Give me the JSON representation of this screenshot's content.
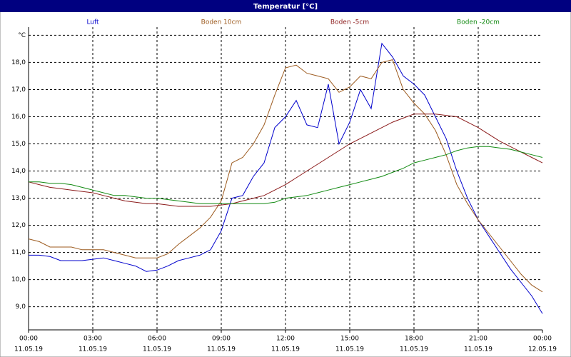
{
  "chart_data": {
    "type": "line",
    "title": "Temperatur [°C]",
    "x": [
      0,
      0.5,
      1,
      1.5,
      2,
      2.5,
      3,
      3.5,
      4,
      4.5,
      5,
      5.5,
      6,
      6.5,
      7,
      7.5,
      8,
      8.5,
      9,
      9.5,
      10,
      10.5,
      11,
      11.5,
      12,
      12.5,
      13,
      13.5,
      14,
      14.5,
      15,
      15.5,
      16,
      16.5,
      17,
      17.5,
      18,
      18.5,
      19,
      19.5,
      20,
      20.5,
      21,
      21.5,
      22,
      22.5,
      23,
      23.5,
      24
    ],
    "series": [
      {
        "name": "Luft",
        "color": "#0000cc",
        "values": [
          10.9,
          10.9,
          10.85,
          10.7,
          10.7,
          10.7,
          10.75,
          10.8,
          10.7,
          10.6,
          10.5,
          10.3,
          10.35,
          10.5,
          10.7,
          10.8,
          10.9,
          11.1,
          11.8,
          13.0,
          13.1,
          13.8,
          14.3,
          15.6,
          16.0,
          16.6,
          15.7,
          15.6,
          17.2,
          15.0,
          15.8,
          17.0,
          16.3,
          18.7,
          18.2,
          17.5,
          17.2,
          16.8,
          16.0,
          15.2,
          14.0,
          13.0,
          12.2,
          11.6,
          11.0,
          10.4,
          9.9,
          9.4,
          8.75
        ]
      },
      {
        "name": "Boden 10cm",
        "color": "#9c5a1e",
        "values": [
          11.5,
          11.4,
          11.2,
          11.2,
          11.2,
          11.1,
          11.1,
          11.1,
          11.0,
          10.9,
          10.8,
          10.8,
          10.8,
          10.95,
          11.3,
          11.6,
          11.9,
          12.3,
          12.9,
          14.3,
          14.5,
          15.0,
          15.7,
          16.8,
          17.8,
          17.9,
          17.6,
          17.5,
          17.4,
          16.9,
          17.1,
          17.5,
          17.4,
          18.0,
          18.1,
          17.0,
          16.5,
          16.1,
          15.5,
          14.6,
          13.5,
          12.8,
          12.2,
          11.7,
          11.2,
          10.7,
          10.2,
          9.8,
          9.55
        ]
      },
      {
        "name": "Boden -5cm",
        "color": "#8b1a1a",
        "values": [
          13.6,
          13.5,
          13.4,
          13.35,
          13.3,
          13.25,
          13.2,
          13.1,
          13.0,
          12.9,
          12.85,
          12.8,
          12.8,
          12.75,
          12.7,
          12.7,
          12.7,
          12.7,
          12.75,
          12.8,
          12.9,
          13.0,
          13.1,
          13.3,
          13.5,
          13.75,
          14.0,
          14.25,
          14.5,
          14.75,
          15.0,
          15.2,
          15.4,
          15.6,
          15.8,
          15.95,
          16.1,
          16.1,
          16.1,
          16.05,
          16.0,
          15.8,
          15.6,
          15.35,
          15.1,
          14.9,
          14.7,
          14.5,
          14.3
        ]
      },
      {
        "name": "Boden -20cm",
        "color": "#128a12",
        "values": [
          13.6,
          13.6,
          13.55,
          13.55,
          13.5,
          13.4,
          13.3,
          13.2,
          13.1,
          13.1,
          13.05,
          13.0,
          13.0,
          12.95,
          12.9,
          12.85,
          12.8,
          12.8,
          12.8,
          12.8,
          12.8,
          12.8,
          12.8,
          12.85,
          13.0,
          13.05,
          13.1,
          13.2,
          13.3,
          13.4,
          13.5,
          13.6,
          13.7,
          13.8,
          13.95,
          14.1,
          14.3,
          14.4,
          14.5,
          14.6,
          14.75,
          14.85,
          14.9,
          14.9,
          14.85,
          14.8,
          14.7,
          14.6,
          14.5
        ]
      }
    ],
    "xlim": [
      0,
      24
    ],
    "xticks": [
      {
        "value": 0,
        "label": "00:00"
      },
      {
        "value": 3,
        "label": "03:00"
      },
      {
        "value": 6,
        "label": "06:00"
      },
      {
        "value": 9,
        "label": "09:00"
      },
      {
        "value": 12,
        "label": "12:00"
      },
      {
        "value": 15,
        "label": "15:00"
      },
      {
        "value": 18,
        "label": "18:00"
      },
      {
        "value": 21,
        "label": "21:00"
      },
      {
        "value": 24,
        "label": "00:00"
      }
    ],
    "xtick_dates": [
      "11.05.19",
      "11.05.19",
      "11.05.19",
      "11.05.19",
      "11.05.19",
      "11.05.19",
      "11.05.19",
      "11.05.19",
      "12.05.19"
    ],
    "ylim": [
      8.15,
      19.3
    ],
    "yticks": [
      {
        "value": 9,
        "label": "9,0"
      },
      {
        "value": 10,
        "label": "10,0"
      },
      {
        "value": 11,
        "label": "11,0"
      },
      {
        "value": 12,
        "label": "12,0"
      },
      {
        "value": 13,
        "label": "13,0"
      },
      {
        "value": 14,
        "label": "14,0"
      },
      {
        "value": 15,
        "label": "15,0"
      },
      {
        "value": 16,
        "label": "16,0"
      },
      {
        "value": 17,
        "label": "17,0"
      },
      {
        "value": 18,
        "label": "18,0"
      },
      {
        "value": 19,
        "label": "°C"
      }
    ],
    "grid": true
  }
}
